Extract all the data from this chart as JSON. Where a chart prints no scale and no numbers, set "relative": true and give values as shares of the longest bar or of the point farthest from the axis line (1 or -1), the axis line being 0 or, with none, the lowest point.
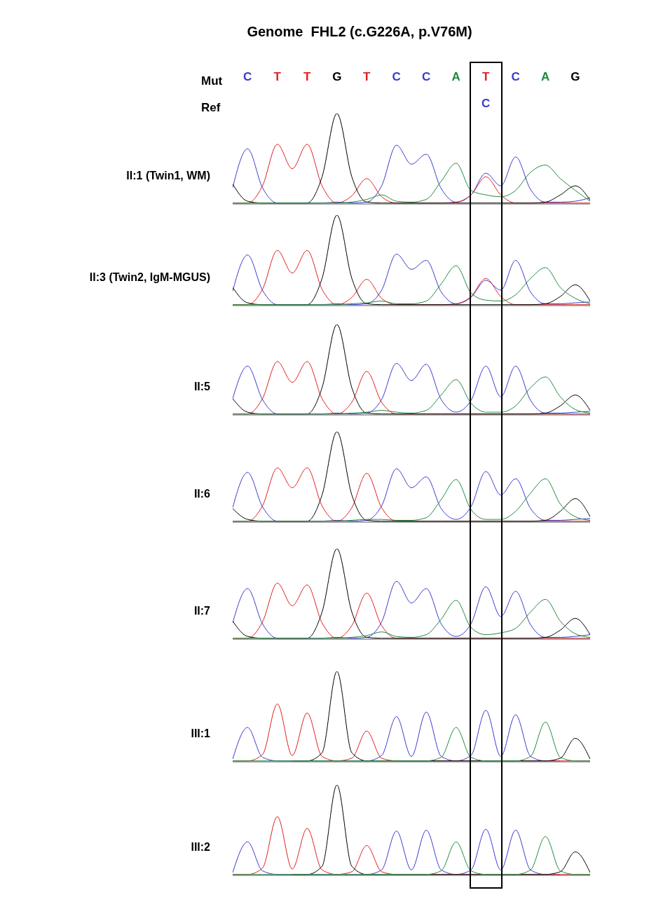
{
  "chart_data": [
    {
      "type": "line",
      "title": "Genome  FHL2 (c.G226A, p.V76M)",
      "ylabel": "II:1 (Twin1, WM)",
      "xlabel": "Mut",
      "relative": true,
      "tick_labels": "x",
      "categories": [
        null,
        "C",
        null,
        "T",
        null,
        "T",
        null,
        "G",
        null,
        "T",
        null,
        "C",
        null,
        "C",
        null,
        "A",
        null,
        "T",
        null,
        "C",
        null,
        "A",
        null,
        "G",
        null
      ],
      "series": [
        {
          "color": "#3a3ad0",
          "values": [
            0.18,
            0.61,
            0.18,
            0.01,
            0.01,
            0.01,
            0.01,
            0.02,
            0.01,
            0.02,
            0.2,
            0.65,
            0.44,
            0.55,
            0.17,
            0.02,
            0.1,
            0.34,
            0.2,
            0.52,
            0.16,
            0.02,
            0.02,
            0.03,
            0.07
          ]
        },
        {
          "color": "#e02020",
          "values": [
            0.01,
            0.01,
            0.2,
            0.66,
            0.39,
            0.66,
            0.2,
            0.01,
            0.09,
            0.28,
            0.08,
            0.01,
            0.01,
            0.01,
            0.01,
            0.02,
            0.1,
            0.3,
            0.1,
            0.01,
            0.01,
            0.01,
            0.01,
            0.01,
            0.01
          ]
        },
        {
          "color": "#000000",
          "values": [
            0.22,
            0.03,
            0.01,
            0.01,
            0.01,
            0.01,
            0.3,
            1,
            0.3,
            0.02,
            0.01,
            0.01,
            0.01,
            0.01,
            0.01,
            0.01,
            0.01,
            0.01,
            0.01,
            0.01,
            0.01,
            0.02,
            0.1,
            0.2,
            0.04
          ]
        },
        {
          "color": "#1f8a3c",
          "values": [
            0.01,
            0.01,
            0.01,
            0.01,
            0.01,
            0.01,
            0.01,
            0.01,
            0.02,
            0.05,
            0.1,
            0.03,
            0.02,
            0.05,
            0.25,
            0.45,
            0.15,
            0.1,
            0.08,
            0.15,
            0.35,
            0.43,
            0.28,
            0.15,
            0.03
          ]
        }
      ]
    },
    {
      "type": "other",
      "xlabel": "Ref",
      "categories": [
        null,
        null,
        null,
        null,
        null,
        null,
        null,
        null,
        null,
        null,
        null,
        null,
        null,
        null,
        null,
        null,
        null,
        "C",
        null,
        null,
        null,
        null,
        null,
        null,
        null
      ]
    },
    {
      "type": "line",
      "ylabel": "II:3 (Twin2, IgM-MGUS)",
      "relative": true,
      "tick_labels": false,
      "categories": [
        null,
        null,
        null,
        null,
        null,
        null,
        null,
        null,
        null,
        null,
        null,
        null,
        null,
        null,
        null,
        null,
        null,
        null,
        null,
        null,
        null,
        null,
        null,
        null,
        null
      ],
      "series": [
        {
          "color": "#3a3ad0",
          "values": [
            0.16,
            0.56,
            0.17,
            0.01,
            0.01,
            0.01,
            0.01,
            0.02,
            0.01,
            0.02,
            0.17,
            0.57,
            0.4,
            0.5,
            0.15,
            0.02,
            0.09,
            0.28,
            0.17,
            0.5,
            0.15,
            0.02,
            0.02,
            0.03,
            0.04
          ]
        },
        {
          "color": "#e02020",
          "values": [
            0.01,
            0.01,
            0.18,
            0.61,
            0.36,
            0.61,
            0.18,
            0.01,
            0.09,
            0.29,
            0.08,
            0.01,
            0.01,
            0.01,
            0.01,
            0.02,
            0.1,
            0.3,
            0.1,
            0.01,
            0.01,
            0.01,
            0.01,
            0.01,
            0.01
          ]
        },
        {
          "color": "#000000",
          "values": [
            0.2,
            0.03,
            0.01,
            0.01,
            0.01,
            0.01,
            0.3,
            1,
            0.3,
            0.02,
            0.01,
            0.01,
            0.01,
            0.01,
            0.01,
            0.01,
            0.01,
            0.01,
            0.01,
            0.01,
            0.01,
            0.02,
            0.1,
            0.23,
            0.05
          ]
        },
        {
          "color": "#1f8a3c",
          "values": [
            0.01,
            0.01,
            0.01,
            0.01,
            0.01,
            0.01,
            0.01,
            0.01,
            0.02,
            0.03,
            0.05,
            0.02,
            0.02,
            0.05,
            0.24,
            0.44,
            0.14,
            0.06,
            0.05,
            0.12,
            0.3,
            0.42,
            0.2,
            0.08,
            0.02
          ]
        }
      ]
    },
    {
      "type": "line",
      "ylabel": "II:5",
      "relative": true,
      "tick_labels": false,
      "categories": [
        null,
        null,
        null,
        null,
        null,
        null,
        null,
        null,
        null,
        null,
        null,
        null,
        null,
        null,
        null,
        null,
        null,
        null,
        null,
        null,
        null,
        null,
        null,
        null,
        null
      ],
      "series": [
        {
          "color": "#3a3ad0",
          "values": [
            0.18,
            0.54,
            0.17,
            0.01,
            0.01,
            0.01,
            0.01,
            0.02,
            0.01,
            0.02,
            0.17,
            0.57,
            0.38,
            0.56,
            0.17,
            0.03,
            0.16,
            0.54,
            0.2,
            0.54,
            0.16,
            0.02,
            0.02,
            0.03,
            0.04
          ]
        },
        {
          "color": "#e02020",
          "values": [
            0.01,
            0.01,
            0.18,
            0.59,
            0.36,
            0.59,
            0.18,
            0.01,
            0.14,
            0.48,
            0.14,
            0.01,
            0.01,
            0.01,
            0.01,
            0.01,
            0.01,
            0.01,
            0.01,
            0.01,
            0.01,
            0.01,
            0.01,
            0.01,
            0.01
          ]
        },
        {
          "color": "#000000",
          "values": [
            0.18,
            0.03,
            0.01,
            0.01,
            0.01,
            0.01,
            0.3,
            1,
            0.3,
            0.02,
            0.01,
            0.01,
            0.01,
            0.01,
            0.01,
            0.01,
            0.01,
            0.01,
            0.01,
            0.01,
            0.01,
            0.02,
            0.1,
            0.22,
            0.05
          ]
        },
        {
          "color": "#1f8a3c",
          "values": [
            0.01,
            0.01,
            0.01,
            0.01,
            0.01,
            0.01,
            0.01,
            0.01,
            0.02,
            0.03,
            0.05,
            0.03,
            0.02,
            0.05,
            0.22,
            0.39,
            0.13,
            0.03,
            0.03,
            0.1,
            0.3,
            0.42,
            0.2,
            0.06,
            0.02
          ]
        }
      ]
    },
    {
      "type": "line",
      "ylabel": "II:6",
      "relative": true,
      "tick_labels": false,
      "categories": [
        null,
        null,
        null,
        null,
        null,
        null,
        null,
        null,
        null,
        null,
        null,
        null,
        null,
        null,
        null,
        null,
        null,
        null,
        null,
        null,
        null,
        null,
        null,
        null,
        null
      ],
      "series": [
        {
          "color": "#3a3ad0",
          "values": [
            0.16,
            0.55,
            0.17,
            0.01,
            0.01,
            0.01,
            0.01,
            0.02,
            0.01,
            0.02,
            0.18,
            0.59,
            0.38,
            0.5,
            0.15,
            0.03,
            0.17,
            0.56,
            0.3,
            0.48,
            0.15,
            0.02,
            0.02,
            0.03,
            0.04
          ]
        },
        {
          "color": "#e02020",
          "values": [
            0.01,
            0.01,
            0.18,
            0.6,
            0.38,
            0.6,
            0.18,
            0.01,
            0.16,
            0.54,
            0.16,
            0.01,
            0.01,
            0.01,
            0.01,
            0.01,
            0.01,
            0.01,
            0.01,
            0.01,
            0.01,
            0.01,
            0.01,
            0.01,
            0.01
          ]
        },
        {
          "color": "#000000",
          "values": [
            0.15,
            0.03,
            0.01,
            0.01,
            0.01,
            0.01,
            0.3,
            1,
            0.3,
            0.02,
            0.01,
            0.01,
            0.01,
            0.01,
            0.01,
            0.01,
            0.01,
            0.01,
            0.01,
            0.01,
            0.01,
            0.02,
            0.12,
            0.26,
            0.06
          ]
        },
        {
          "color": "#1f8a3c",
          "values": [
            0.01,
            0.01,
            0.01,
            0.01,
            0.01,
            0.01,
            0.01,
            0.01,
            0.02,
            0.03,
            0.03,
            0.02,
            0.02,
            0.05,
            0.25,
            0.47,
            0.14,
            0.03,
            0.03,
            0.12,
            0.32,
            0.48,
            0.2,
            0.06,
            0.02
          ]
        }
      ]
    },
    {
      "type": "line",
      "ylabel": "II:7",
      "relative": true,
      "tick_labels": false,
      "categories": [
        null,
        null,
        null,
        null,
        null,
        null,
        null,
        null,
        null,
        null,
        null,
        null,
        null,
        null,
        null,
        null,
        null,
        null,
        null,
        null,
        null,
        null,
        null,
        null,
        null
      ],
      "series": [
        {
          "color": "#3a3ad0",
          "values": [
            0.18,
            0.56,
            0.17,
            0.01,
            0.01,
            0.01,
            0.01,
            0.02,
            0.01,
            0.02,
            0.19,
            0.64,
            0.4,
            0.56,
            0.17,
            0.03,
            0.17,
            0.58,
            0.25,
            0.53,
            0.16,
            0.02,
            0.02,
            0.03,
            0.05
          ]
        },
        {
          "color": "#e02020",
          "values": [
            0.01,
            0.01,
            0.19,
            0.62,
            0.37,
            0.6,
            0.18,
            0.01,
            0.15,
            0.51,
            0.15,
            0.01,
            0.01,
            0.01,
            0.01,
            0.01,
            0.01,
            0.01,
            0.01,
            0.01,
            0.01,
            0.01,
            0.01,
            0.01,
            0.01
          ]
        },
        {
          "color": "#000000",
          "values": [
            0.2,
            0.03,
            0.01,
            0.01,
            0.01,
            0.01,
            0.3,
            1,
            0.3,
            0.02,
            0.01,
            0.01,
            0.01,
            0.01,
            0.01,
            0.01,
            0.01,
            0.01,
            0.01,
            0.01,
            0.01,
            0.02,
            0.1,
            0.23,
            0.05
          ]
        },
        {
          "color": "#1f8a3c",
          "values": [
            0.01,
            0.01,
            0.01,
            0.01,
            0.01,
            0.01,
            0.01,
            0.01,
            0.02,
            0.04,
            0.08,
            0.03,
            0.02,
            0.05,
            0.22,
            0.43,
            0.13,
            0.05,
            0.07,
            0.12,
            0.3,
            0.44,
            0.2,
            0.06,
            0.02
          ]
        }
      ]
    },
    {
      "type": "line",
      "ylabel": "III:1",
      "relative": true,
      "tick_labels": false,
      "categories": [
        null,
        null,
        null,
        null,
        null,
        null,
        null,
        null,
        null,
        null,
        null,
        null,
        null,
        null,
        null,
        null,
        null,
        null,
        null,
        null,
        null,
        null,
        null,
        null,
        null
      ],
      "series": [
        {
          "color": "#3a3ad0",
          "values": [
            0.03,
            0.38,
            0.05,
            0.01,
            0.01,
            0.01,
            0.01,
            0.01,
            0.01,
            0.01,
            0.07,
            0.5,
            0.06,
            0.55,
            0.06,
            0.01,
            0.07,
            0.57,
            0.06,
            0.52,
            0.06,
            0.01,
            0.01,
            null,
            null
          ]
        },
        {
          "color": "#e02020",
          "values": [
            0.01,
            0.01,
            0.08,
            0.64,
            0.07,
            0.54,
            0.06,
            0.01,
            0.04,
            0.34,
            0.04,
            0.01,
            0.01,
            0.01,
            0.01,
            0.01,
            0.01,
            0.01,
            0.01,
            0.01,
            0.01,
            0.01,
            0.01,
            0.01,
            0.01
          ]
        },
        {
          "color": "#000000",
          "values": [
            null,
            null,
            null,
            null,
            0.01,
            0.01,
            0.1,
            1,
            0.1,
            0.01,
            0.01,
            0.01,
            0.01,
            0.01,
            0.01,
            0.01,
            0.01,
            0.01,
            0.01,
            0.01,
            0.01,
            0.01,
            0.04,
            0.26,
            0.03
          ]
        },
        {
          "color": "#1f8a3c",
          "values": [
            0.01,
            0.01,
            0.01,
            0.01,
            0.01,
            0.01,
            0.01,
            0.01,
            0.01,
            0.01,
            0.01,
            0.01,
            0.01,
            0.01,
            0.05,
            0.38,
            0.05,
            0.01,
            0.01,
            0.01,
            0.06,
            0.44,
            0.05,
            0.01,
            0.01
          ]
        }
      ]
    },
    {
      "type": "line",
      "ylabel": "III:2",
      "relative": true,
      "tick_labels": false,
      "categories": [
        null,
        null,
        null,
        null,
        null,
        null,
        null,
        null,
        null,
        null,
        null,
        null,
        null,
        null,
        null,
        null,
        null,
        null,
        null,
        null,
        null,
        null,
        null,
        null,
        null
      ],
      "series": [
        {
          "color": "#3a3ad0",
          "values": [
            0.03,
            0.37,
            0.05,
            0.01,
            0.01,
            0.01,
            0.01,
            0.01,
            0.01,
            0.01,
            0.06,
            0.49,
            0.06,
            0.5,
            0.06,
            0.01,
            0.06,
            0.51,
            0.06,
            0.5,
            0.06,
            0.01,
            0.01,
            null,
            null
          ]
        },
        {
          "color": "#e02020",
          "values": [
            0.01,
            0.01,
            0.08,
            0.65,
            0.07,
            0.52,
            0.06,
            0.01,
            0.04,
            0.33,
            0.04,
            0.01,
            0.01,
            0.01,
            0.01,
            0.01,
            0.01,
            0.01,
            0.01,
            0.01,
            0.01,
            0.01,
            0.01,
            0.01,
            0.01
          ]
        },
        {
          "color": "#000000",
          "values": [
            null,
            null,
            null,
            null,
            0.01,
            0.01,
            0.1,
            1,
            0.1,
            0.01,
            0.01,
            0.01,
            0.01,
            0.01,
            0.01,
            0.01,
            0.01,
            0.01,
            0.01,
            0.01,
            0.01,
            0.01,
            0.04,
            0.26,
            0.03
          ]
        },
        {
          "color": "#1f8a3c",
          "values": [
            0.01,
            0.01,
            0.01,
            0.01,
            0.01,
            0.01,
            0.01,
            0.01,
            0.01,
            0.01,
            0.01,
            0.01,
            0.01,
            0.01,
            0.05,
            0.37,
            0.05,
            0.01,
            0.01,
            0.01,
            0.06,
            0.43,
            0.05,
            0.01,
            0.01
          ]
        }
      ]
    }
  ]
}
